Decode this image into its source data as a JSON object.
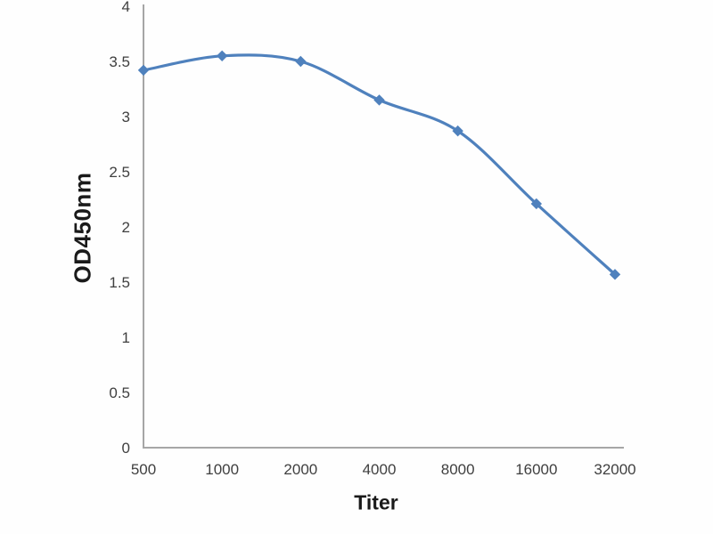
{
  "page": {
    "background_color": "#ffffff"
  },
  "chart_data": {
    "type": "line",
    "title": "",
    "xlabel": "Titer",
    "ylabel": "OD450nm",
    "categories": [
      "500",
      "1000",
      "2000",
      "4000",
      "8000",
      "16000",
      "32000"
    ],
    "series": [
      {
        "name": "OD450nm",
        "values": [
          3.42,
          3.55,
          3.5,
          3.15,
          2.87,
          2.21,
          1.57
        ],
        "color": "#4f81bd",
        "marker": "diamond",
        "smoothed": true
      }
    ],
    "y_tick_labels": [
      "0",
      "0.5",
      "1",
      "1.5",
      "2",
      "2.5",
      "3",
      "3.5",
      "4"
    ],
    "y_tick_values": [
      0,
      0.5,
      1,
      1.5,
      2,
      2.5,
      3,
      3.5,
      4
    ],
    "ylim": [
      0,
      4
    ],
    "grid": false,
    "legend_position": "none",
    "axis_color": "#a6a6a6",
    "tick_label_color": "#3f3f3f",
    "axis_title_color": "#1a1a1a"
  }
}
